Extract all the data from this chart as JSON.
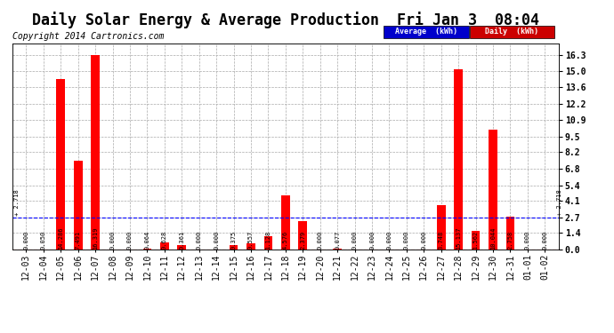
{
  "title": "Daily Solar Energy & Average Production  Fri Jan 3  08:04",
  "copyright": "Copyright 2014 Cartronics.com",
  "categories": [
    "12-03",
    "12-04",
    "12-05",
    "12-06",
    "12-07",
    "12-08",
    "12-09",
    "12-10",
    "12-11",
    "12-12",
    "12-13",
    "12-14",
    "12-15",
    "12-16",
    "12-17",
    "12-18",
    "12-19",
    "12-20",
    "12-21",
    "12-22",
    "12-23",
    "12-24",
    "12-25",
    "12-26",
    "12-27",
    "12-28",
    "12-29",
    "12-30",
    "12-31",
    "01-01",
    "01-02"
  ],
  "daily_values": [
    0.0,
    0.05,
    14.286,
    7.491,
    16.319,
    0.0,
    0.0,
    0.064,
    0.628,
    0.361,
    0.0,
    0.0,
    0.375,
    0.557,
    1.128,
    4.576,
    2.379,
    0.0,
    0.077,
    0.0,
    0.0,
    0.0,
    0.0,
    0.0,
    3.748,
    15.137,
    1.562,
    10.044,
    2.758,
    0.0,
    0.0
  ],
  "average_value": 2.718,
  "bar_color": "#ff0000",
  "average_color": "#0000ff",
  "background_color": "#ffffff",
  "grid_color": "#aaaaaa",
  "yticks_right": [
    0.0,
    1.4,
    2.7,
    4.1,
    5.4,
    6.8,
    8.2,
    9.5,
    10.9,
    12.2,
    13.6,
    15.0,
    16.3
  ],
  "ylim": [
    0,
    17.3
  ],
  "legend_avg_label": "Average  (kWh)",
  "legend_daily_label": "Daily  (kWh)",
  "avg_label_left": "+ 2.718",
  "avg_label_right": "+ 2.718",
  "title_fontsize": 12,
  "copyright_fontsize": 7,
  "tick_fontsize": 7,
  "value_fontsize": 5
}
